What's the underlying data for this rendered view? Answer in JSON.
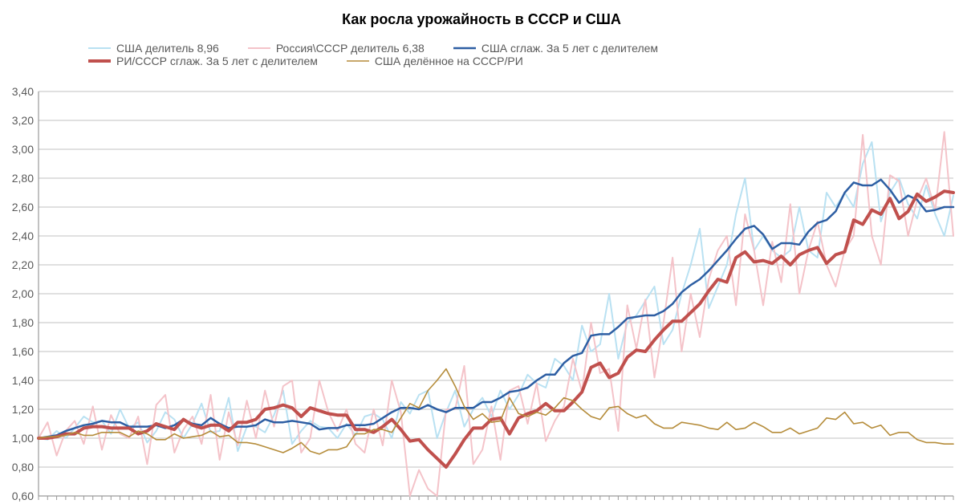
{
  "title": "Как росла урожайность в СССР и США",
  "title_fontsize": 18,
  "legend_fontsize": 14,
  "legend": {
    "row1": [
      {
        "color": "#b9e1f2",
        "label": "США делитель 8,96",
        "width": 2
      },
      {
        "color": "#f4c3c9",
        "label": "Россия\\СССР делитель 6,38",
        "width": 2
      },
      {
        "color": "#2d5ea3",
        "label": "США сглаж. За 5 лет с делителем",
        "width": 2.5
      }
    ],
    "row2": [
      {
        "color": "#c0504d",
        "label": "РИ/СССР сглаж. За 5 лет с делителем",
        "width": 4
      },
      {
        "color": "#b58c3a",
        "label": "США делённое на СССР/РИ",
        "width": 1.6
      }
    ]
  },
  "chart": {
    "ylim": [
      0.6,
      3.4
    ],
    "ytick_step": 0.2,
    "ytick_labels": [
      "0,60",
      "0,80",
      "1,00",
      "1,20",
      "1,40",
      "1,60",
      "1,80",
      "2,00",
      "2,20",
      "2,40",
      "2,60",
      "2,80",
      "3,00",
      "3,20",
      "3,40"
    ],
    "x_count": 102,
    "axis_color": "#9a9a9a",
    "grid_color": "#c0c0c0",
    "tick_color": "#9a9a9a",
    "background": "#ffffff",
    "series": [
      {
        "name": "usa-raw",
        "label": "США делитель 8,96",
        "color": "#b9e1f2",
        "width": 2,
        "y": [
          1.0,
          0.99,
          1.05,
          1.0,
          1.07,
          1.15,
          1.11,
          1.12,
          1.03,
          1.2,
          1.07,
          1.11,
          0.97,
          1.05,
          1.18,
          1.13,
          1.0,
          1.1,
          1.24,
          1.04,
          1.05,
          1.28,
          0.91,
          1.08,
          1.08,
          1.04,
          1.16,
          1.33,
          0.96,
          1.05,
          1.12,
          1.08,
          1.07,
          1.0,
          1.1,
          1.02,
          1.15,
          1.17,
          1.13,
          1.0,
          1.25,
          1.17,
          1.3,
          1.33,
          1.0,
          1.18,
          1.33,
          1.08,
          1.2,
          1.28,
          1.15,
          1.33,
          1.2,
          1.3,
          1.44,
          1.38,
          1.35,
          1.55,
          1.5,
          1.4,
          1.78,
          1.6,
          1.65,
          2.0,
          1.55,
          1.8,
          1.85,
          1.95,
          2.05,
          1.65,
          1.75,
          2.0,
          2.2,
          2.45,
          1.9,
          2.05,
          2.2,
          2.55,
          2.8,
          2.3,
          2.4,
          2.3,
          2.25,
          2.3,
          2.6,
          2.3,
          2.25,
          2.7,
          2.6,
          2.7,
          2.6,
          2.9,
          3.05,
          2.5,
          2.7,
          2.8,
          2.62,
          2.52,
          2.75,
          2.55,
          2.4,
          2.68
        ]
      },
      {
        "name": "russia-raw",
        "label": "Россия\\СССР делитель 6,38",
        "color": "#f4c3c9",
        "width": 2,
        "y": [
          1.0,
          1.11,
          0.88,
          1.05,
          1.12,
          0.96,
          1.22,
          0.92,
          1.16,
          1.03,
          1.0,
          1.15,
          0.82,
          1.23,
          1.3,
          0.9,
          1.06,
          1.15,
          0.96,
          1.3,
          0.85,
          1.18,
          0.95,
          1.26,
          1.0,
          1.33,
          1.08,
          1.36,
          1.4,
          0.9,
          1.0,
          1.4,
          1.18,
          1.05,
          1.2,
          0.96,
          0.9,
          1.2,
          0.95,
          1.4,
          1.18,
          0.6,
          0.78,
          0.65,
          0.6,
          1.2,
          1.2,
          1.5,
          0.82,
          0.92,
          1.22,
          0.85,
          1.33,
          1.36,
          1.1,
          1.38,
          0.98,
          1.12,
          1.22,
          1.55,
          1.32,
          1.8,
          1.45,
          1.48,
          1.05,
          1.92,
          1.62,
          1.96,
          1.42,
          1.8,
          2.25,
          1.6,
          2.0,
          1.7,
          2.1,
          2.3,
          2.4,
          1.92,
          2.55,
          2.3,
          1.92,
          2.36,
          2.08,
          2.62,
          2.0,
          2.3,
          2.5,
          2.2,
          2.05,
          2.3,
          2.4,
          3.1,
          2.4,
          2.2,
          2.82,
          2.78,
          2.4,
          2.65,
          2.8,
          2.58,
          3.12,
          2.4
        ]
      },
      {
        "name": "usa-smooth",
        "label": "США сглаж. За 5 лет с делителем",
        "color": "#2d5ea3",
        "width": 2.5,
        "y": [
          1.0,
          1.01,
          1.02,
          1.05,
          1.07,
          1.09,
          1.1,
          1.12,
          1.11,
          1.11,
          1.08,
          1.08,
          1.08,
          1.09,
          1.07,
          1.09,
          1.13,
          1.1,
          1.09,
          1.14,
          1.1,
          1.07,
          1.08,
          1.08,
          1.09,
          1.13,
          1.11,
          1.11,
          1.12,
          1.11,
          1.1,
          1.06,
          1.07,
          1.07,
          1.09,
          1.09,
          1.09,
          1.1,
          1.14,
          1.18,
          1.21,
          1.21,
          1.2,
          1.23,
          1.2,
          1.18,
          1.21,
          1.21,
          1.21,
          1.25,
          1.25,
          1.28,
          1.32,
          1.33,
          1.35,
          1.4,
          1.44,
          1.44,
          1.52,
          1.57,
          1.59,
          1.71,
          1.72,
          1.72,
          1.77,
          1.83,
          1.84,
          1.85,
          1.85,
          1.88,
          1.93,
          2.01,
          2.06,
          2.1,
          2.16,
          2.23,
          2.3,
          2.38,
          2.45,
          2.47,
          2.41,
          2.31,
          2.35,
          2.35,
          2.34,
          2.43,
          2.49,
          2.51,
          2.57,
          2.7,
          2.77,
          2.75,
          2.75,
          2.79,
          2.72,
          2.63,
          2.68,
          2.65,
          2.57,
          2.58,
          2.6,
          2.6
        ]
      },
      {
        "name": "ri-ussr-smooth",
        "label": "РИ/СССР сглаж. За 5 лет с делителем",
        "color": "#c0504d",
        "width": 4,
        "y": [
          1.0,
          1.0,
          1.01,
          1.03,
          1.03,
          1.07,
          1.08,
          1.08,
          1.07,
          1.07,
          1.07,
          1.03,
          1.05,
          1.1,
          1.08,
          1.06,
          1.13,
          1.09,
          1.07,
          1.09,
          1.09,
          1.05,
          1.11,
          1.11,
          1.13,
          1.2,
          1.21,
          1.23,
          1.21,
          1.15,
          1.21,
          1.19,
          1.17,
          1.16,
          1.16,
          1.06,
          1.06,
          1.04,
          1.08,
          1.13,
          1.06,
          0.98,
          0.99,
          0.92,
          0.86,
          0.8,
          0.89,
          0.99,
          1.07,
          1.07,
          1.13,
          1.14,
          1.03,
          1.14,
          1.17,
          1.19,
          1.24,
          1.19,
          1.19,
          1.25,
          1.32,
          1.49,
          1.52,
          1.42,
          1.45,
          1.56,
          1.61,
          1.6,
          1.68,
          1.75,
          1.81,
          1.81,
          1.87,
          1.93,
          2.02,
          2.1,
          2.08,
          2.25,
          2.29,
          2.22,
          2.23,
          2.21,
          2.26,
          2.2,
          2.27,
          2.3,
          2.32,
          2.21,
          2.27,
          2.29,
          2.51,
          2.48,
          2.58,
          2.55,
          2.66,
          2.52,
          2.57,
          2.69,
          2.64,
          2.67,
          2.71,
          2.7
        ]
      },
      {
        "name": "usa-div-ussr",
        "label": "США делённое на СССР/РИ",
        "color": "#b58c3a",
        "width": 1.6,
        "y": [
          1.0,
          1.01,
          1.01,
          1.02,
          1.04,
          1.02,
          1.02,
          1.04,
          1.04,
          1.04,
          1.01,
          1.05,
          1.03,
          0.99,
          0.99,
          1.03,
          1.0,
          1.01,
          1.02,
          1.05,
          1.01,
          1.02,
          0.97,
          0.97,
          0.96,
          0.94,
          0.92,
          0.9,
          0.93,
          0.97,
          0.91,
          0.89,
          0.92,
          0.92,
          0.94,
          1.03,
          1.03,
          1.06,
          1.06,
          1.04,
          1.14,
          1.24,
          1.21,
          1.33,
          1.4,
          1.48,
          1.36,
          1.22,
          1.13,
          1.17,
          1.11,
          1.12,
          1.28,
          1.17,
          1.15,
          1.18,
          1.16,
          1.21,
          1.28,
          1.26,
          1.2,
          1.15,
          1.13,
          1.21,
          1.22,
          1.17,
          1.14,
          1.16,
          1.1,
          1.07,
          1.07,
          1.11,
          1.1,
          1.09,
          1.07,
          1.06,
          1.11,
          1.06,
          1.07,
          1.11,
          1.08,
          1.04,
          1.04,
          1.07,
          1.03,
          1.05,
          1.07,
          1.14,
          1.13,
          1.18,
          1.1,
          1.11,
          1.07,
          1.09,
          1.02,
          1.04,
          1.04,
          0.99,
          0.97,
          0.97,
          0.96,
          0.96
        ]
      }
    ]
  }
}
